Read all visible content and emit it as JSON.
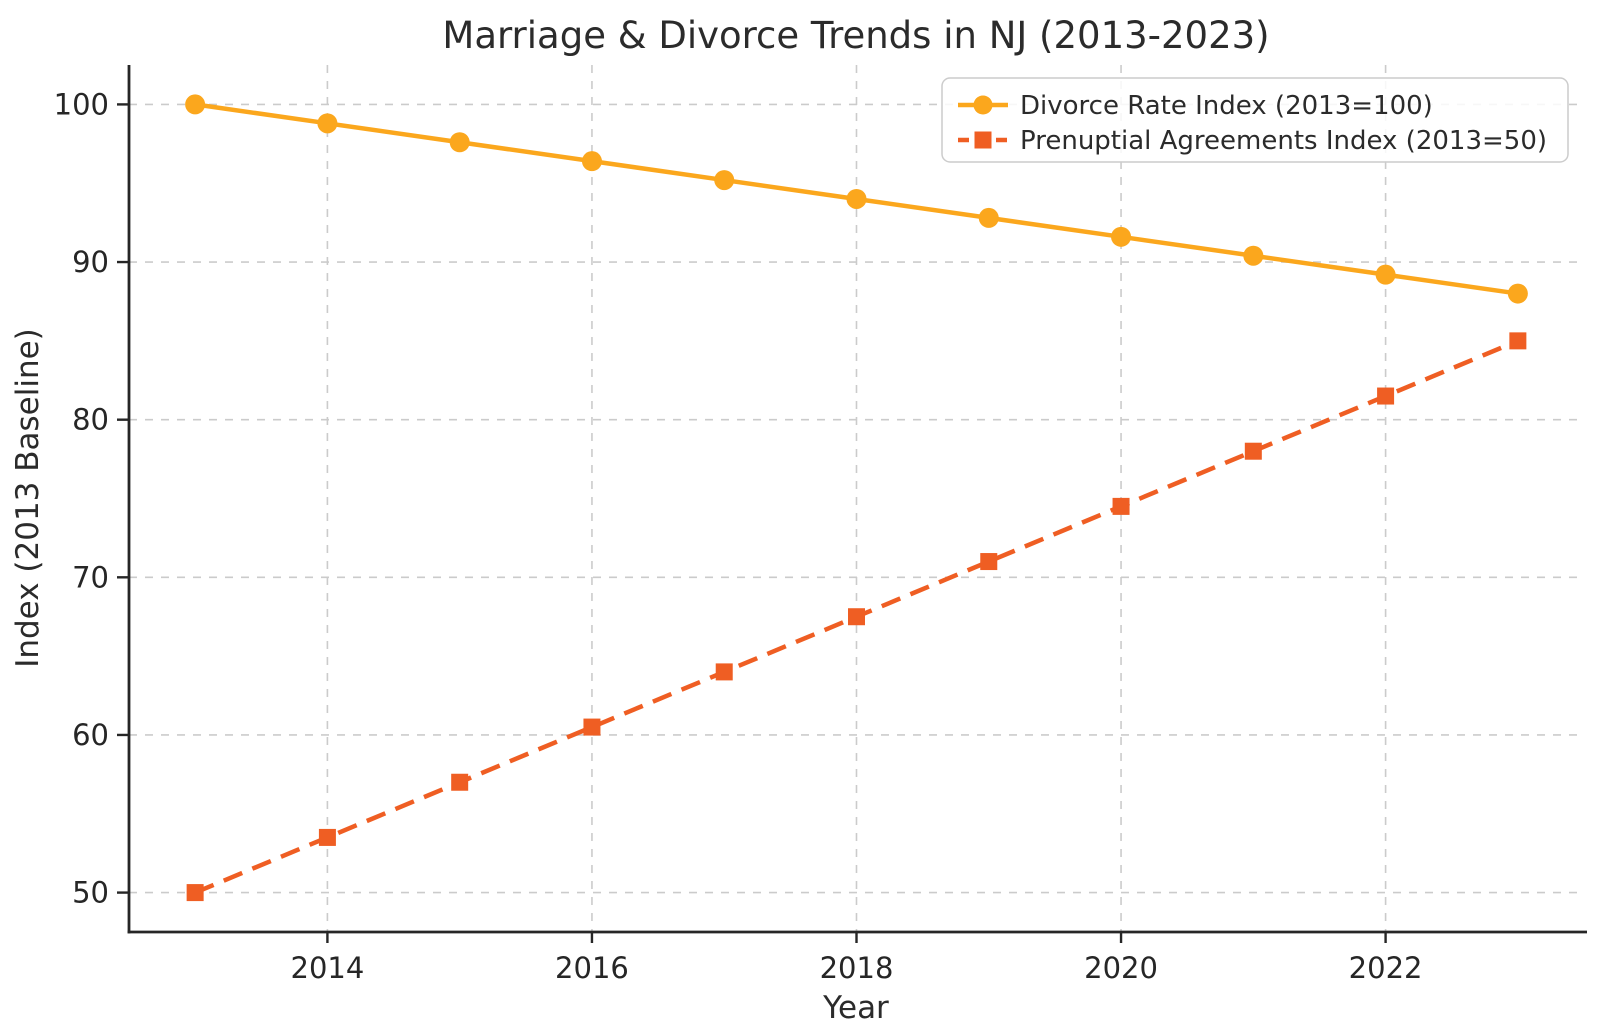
{
  "chart_data": {
    "type": "line",
    "title": "Marriage & Divorce Trends in NJ (2013-2023)",
    "xlabel": "Year",
    "ylabel": "Index (2013 Baseline)",
    "x": [
      2013,
      2014,
      2015,
      2016,
      2017,
      2018,
      2019,
      2020,
      2021,
      2022,
      2023
    ],
    "series": [
      {
        "name": "Divorce Rate Index (2013=100)",
        "color": "#FBA71D",
        "line_style": "solid",
        "marker": "circle",
        "values": [
          100,
          98.8,
          97.6,
          96.4,
          95.2,
          94,
          92.8,
          91.6,
          90.4,
          89.2,
          88
        ]
      },
      {
        "name": "Prenuptial Agreements Index (2013=50)",
        "color": "#EF5E23",
        "line_style": "dashed",
        "marker": "square",
        "values": [
          50,
          53.5,
          57,
          60.5,
          64,
          67.5,
          71,
          74.5,
          78,
          81.5,
          85
        ]
      }
    ],
    "xticks": [
      2014,
      2016,
      2018,
      2020,
      2022
    ],
    "xticklabels": [
      "2014",
      "2016",
      "2018",
      "2020",
      "2022"
    ],
    "yticks": [
      50,
      60,
      70,
      80,
      90,
      100
    ],
    "yticklabels": [
      "50",
      "60",
      "70",
      "80",
      "90",
      "100"
    ],
    "xlim": [
      2012.5,
      2023.5
    ],
    "ylim": [
      47.5,
      102.5
    ],
    "grid": true,
    "grid_style": "dashed",
    "legend_position": "upper right"
  },
  "colors": {
    "background": "#ffffff",
    "grid": "#cbcbcb",
    "spine": "#262626",
    "tick": "#262626",
    "text": "#2b2b2b",
    "legend_border": "#cccccc"
  }
}
